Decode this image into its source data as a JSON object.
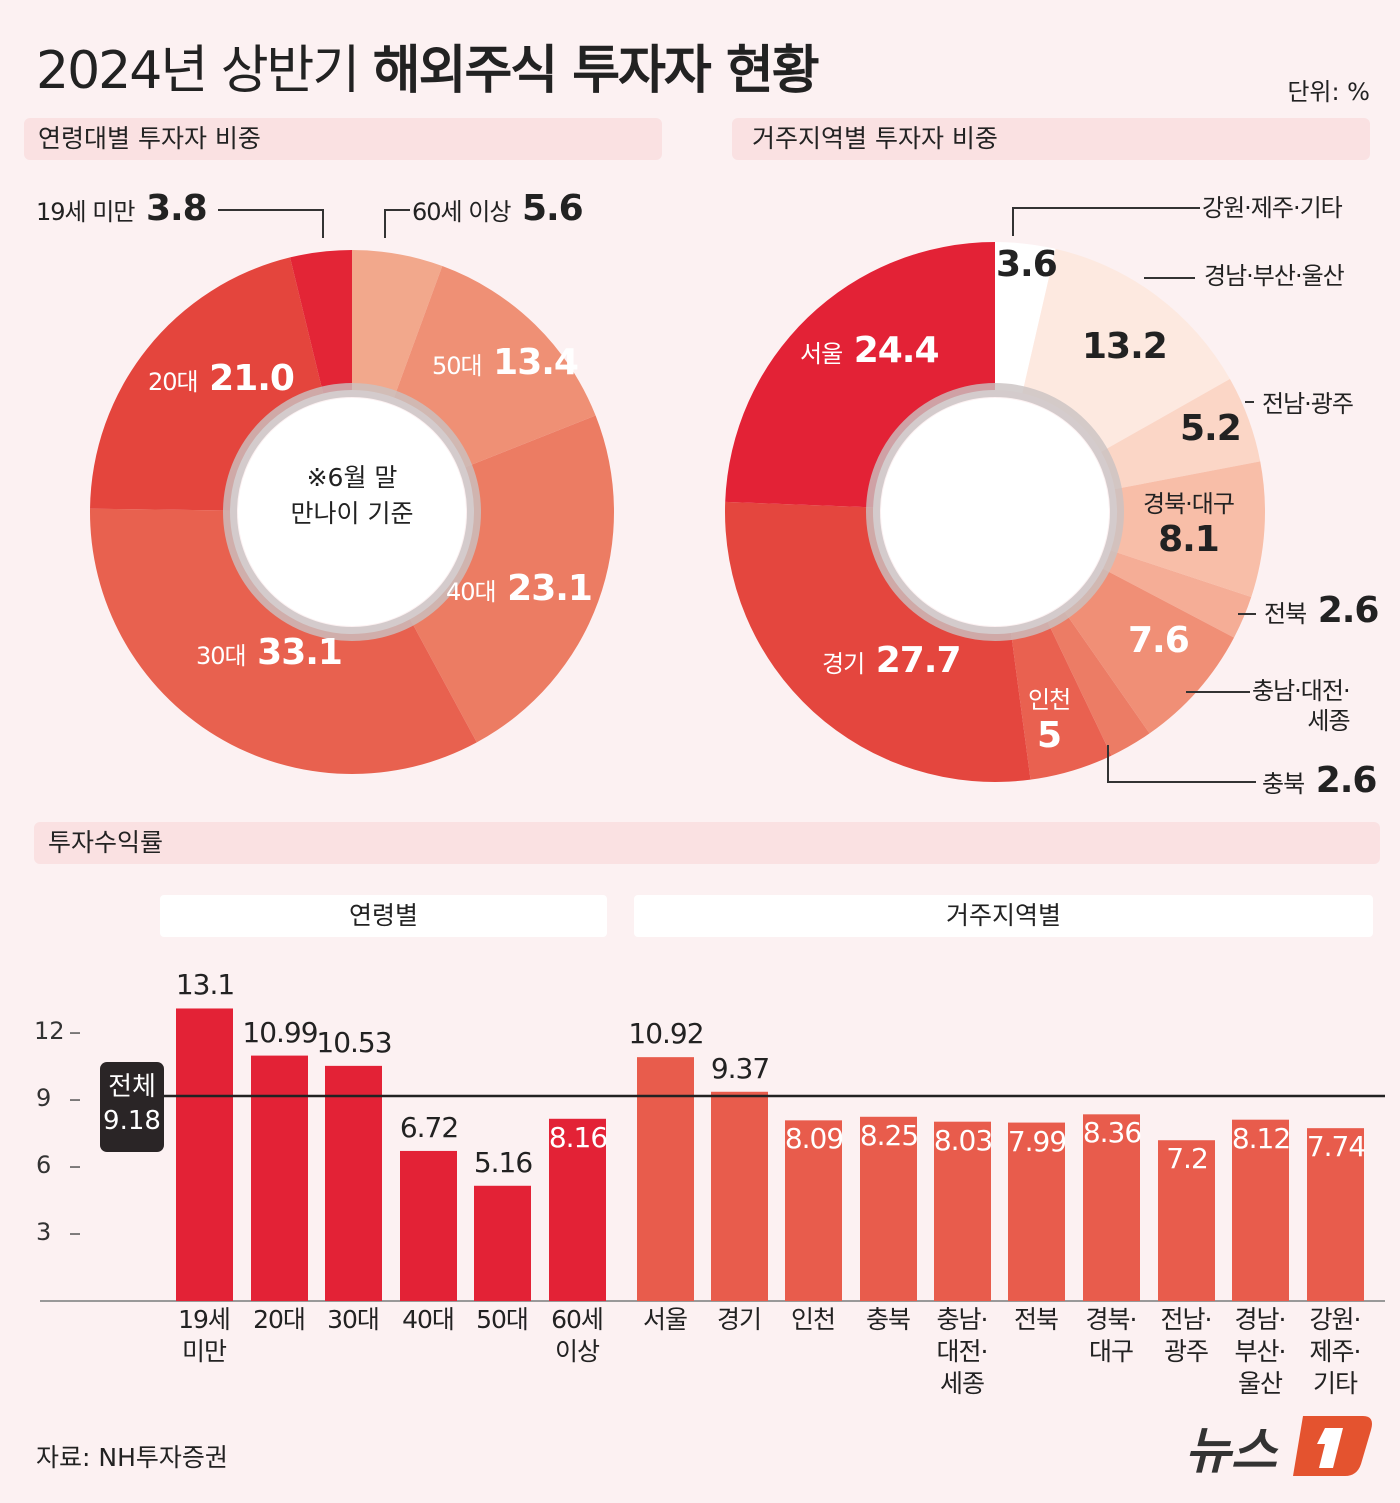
{
  "title": {
    "light": "2024년 상반기",
    "bold": "해외주식 투자자 현황"
  },
  "unit": "단위: %",
  "age_section": "연령대별 투자자 비중",
  "region_section": "거주지역별 투자자 비중",
  "return_section": "투자수익률",
  "age_note": [
    "※6월 말",
    "만나이 기준"
  ],
  "chart_data": [
    {
      "type": "pie",
      "donut": true,
      "title": "연령대별 투자자 비중",
      "order": "clockwise from top",
      "categories": [
        "60세 이상",
        "50대",
        "40대",
        "30대",
        "20대",
        "19세 미만"
      ],
      "values": [
        5.6,
        13.4,
        23.1,
        33.1,
        21.0,
        3.8
      ],
      "value_labels": [
        "5.6",
        "13.4",
        "23.1",
        "33.1",
        "21.0",
        "3.8"
      ],
      "colors": [
        "#f2a88c",
        "#ef9075",
        "#ec7c63",
        "#e8614f",
        "#e4453d",
        "#e32536"
      ]
    },
    {
      "type": "pie",
      "donut": true,
      "title": "거주지역별 투자자 비중",
      "order": "clockwise from top",
      "categories": [
        "강원·제주·기타",
        "경남·부산·울산",
        "전남·광주",
        "경북·대구",
        "전북",
        "충남·대전·세종",
        "충북",
        "인천",
        "경기",
        "서울"
      ],
      "values": [
        3.6,
        13.2,
        5.2,
        8.1,
        2.6,
        7.6,
        2.6,
        5,
        27.7,
        24.4
      ],
      "value_labels": [
        "3.6",
        "13.2",
        "5.2",
        "8.1",
        "2.6",
        "7.6",
        "2.6",
        "5",
        "27.7",
        "24.4"
      ],
      "colors": [
        "#ffffff",
        "#fde9e0",
        "#fbd6c6",
        "#f8bea8",
        "#f5ad96",
        "#f08f76",
        "#ec7c65",
        "#e96150",
        "#e4463e",
        "#e32236"
      ]
    },
    {
      "type": "bar",
      "title": "투자수익률",
      "ylim": [
        0,
        15
      ],
      "yticks": [
        3,
        6,
        9,
        12
      ],
      "reference_line": {
        "label": "전체",
        "value": 9.18,
        "value_label": "9.18"
      },
      "groups": [
        {
          "label": "연령별",
          "color": "#e32236",
          "categories": [
            "19세\n미만",
            "20대",
            "30대",
            "40대",
            "50대",
            "60세\n이상"
          ],
          "values": [
            13.1,
            10.99,
            10.53,
            6.72,
            5.16,
            8.16
          ],
          "value_labels": [
            "13.1",
            "10.99",
            "10.53",
            "6.72",
            "5.16",
            "8.16"
          ]
        },
        {
          "label": "거주지역별",
          "color": "#e85c4c",
          "categories": [
            "서울",
            "경기",
            "인천",
            "충북",
            "충남·\n대전·\n세종",
            "전북",
            "경북·\n대구",
            "전남·\n광주",
            "경남·\n부산·\n울산",
            "강원·\n제주·\n기타"
          ],
          "values": [
            10.92,
            9.37,
            8.09,
            8.25,
            8.03,
            7.99,
            8.36,
            7.2,
            8.12,
            7.74
          ],
          "value_labels": [
            "10.92",
            "9.37",
            "8.09",
            "8.25",
            "8.03",
            "7.99",
            "8.36",
            "7.2",
            "8.12",
            "7.74"
          ]
        }
      ]
    }
  ],
  "source": "자료: NH투자증권",
  "logo": {
    "text": "뉴스1",
    "color": "#e4532f"
  }
}
